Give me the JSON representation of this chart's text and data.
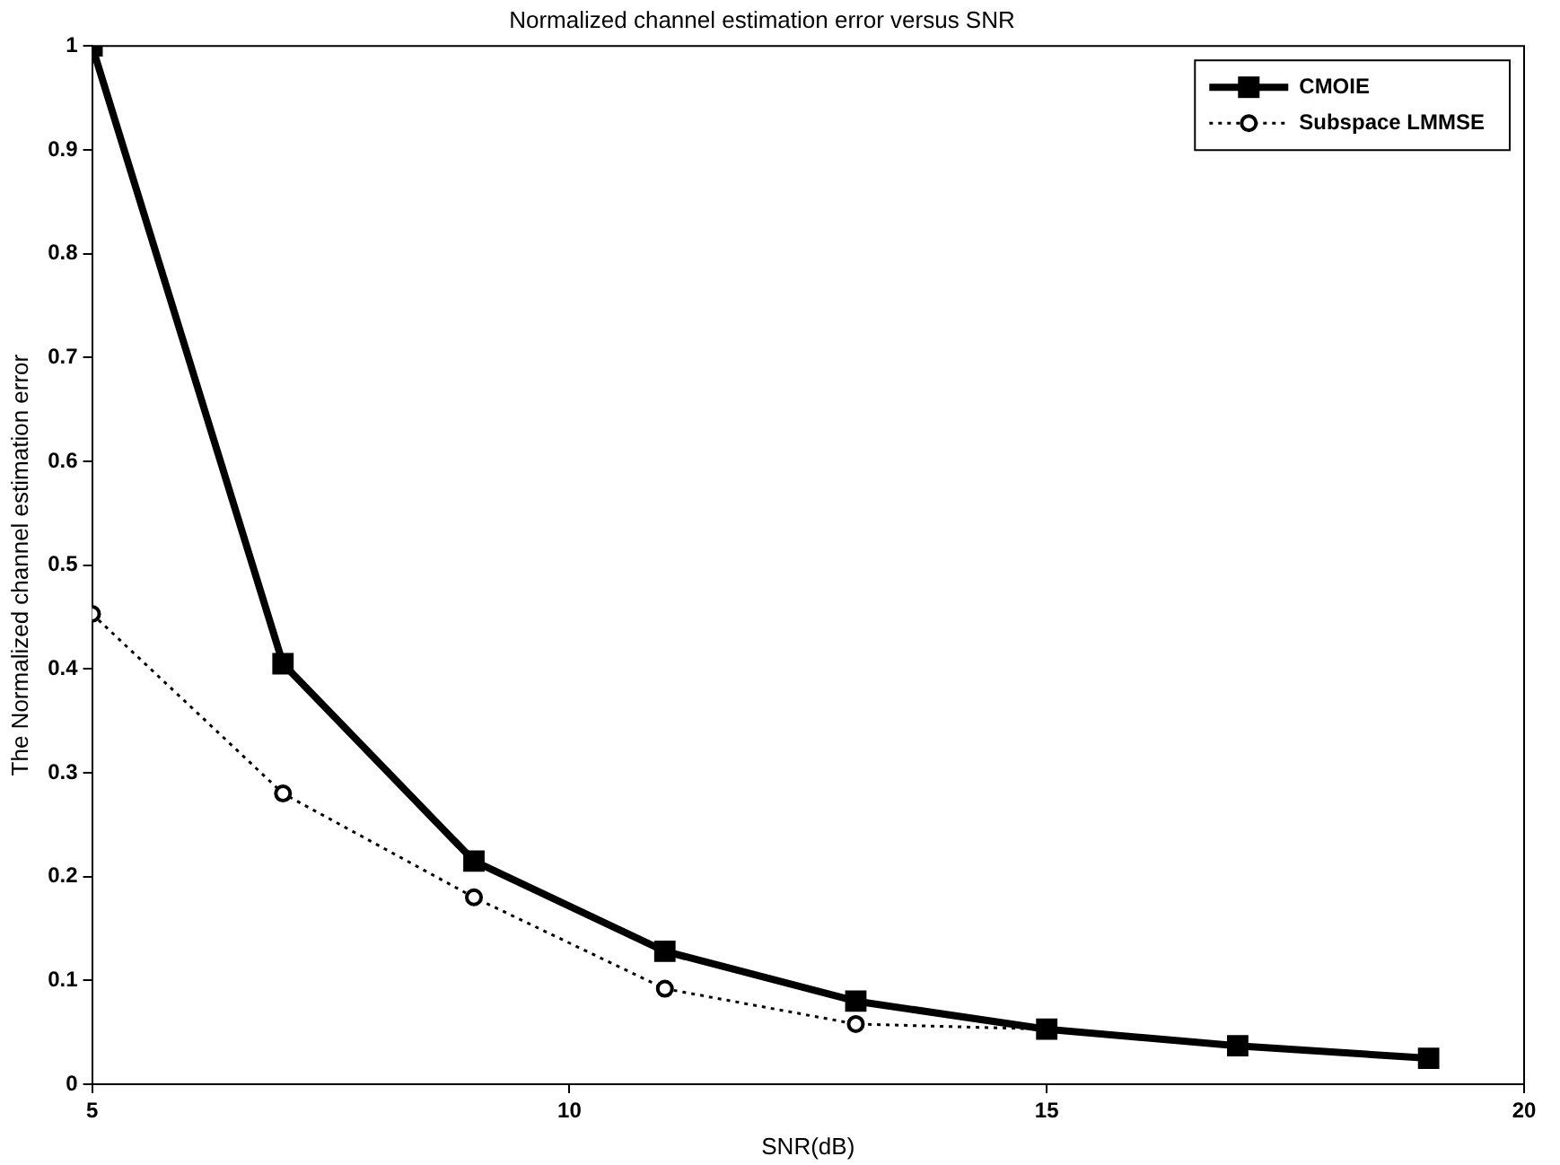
{
  "chart_data": {
    "type": "line",
    "title": "Normalized channel estimation error versus SNR",
    "xlabel": "SNR(dB)",
    "ylabel": "The Normalized channel estimation error",
    "x": [
      5,
      7,
      9,
      11,
      13,
      15,
      17,
      19
    ],
    "series": [
      {
        "name": "CMOIE",
        "color": "#000000",
        "marker": "square",
        "line_style": "solid",
        "values": [
          1.0,
          0.405,
          0.215,
          0.128,
          0.08,
          0.053,
          0.037,
          0.025
        ]
      },
      {
        "name": "Subspace LMMSE",
        "color": "#000000",
        "marker": "circle",
        "line_style": "dotted",
        "values": [
          0.453,
          0.28,
          0.18,
          0.092,
          0.058,
          0.053,
          null,
          null
        ]
      }
    ],
    "xlim": [
      5,
      20
    ],
    "xticks": [
      5,
      10,
      15,
      20
    ],
    "ylim": [
      0,
      1
    ],
    "yticks": [
      0,
      0.1,
      0.2,
      0.3,
      0.4,
      0.5,
      0.6,
      0.7,
      0.8,
      0.9,
      1
    ],
    "grid": false,
    "legend": "top right"
  }
}
